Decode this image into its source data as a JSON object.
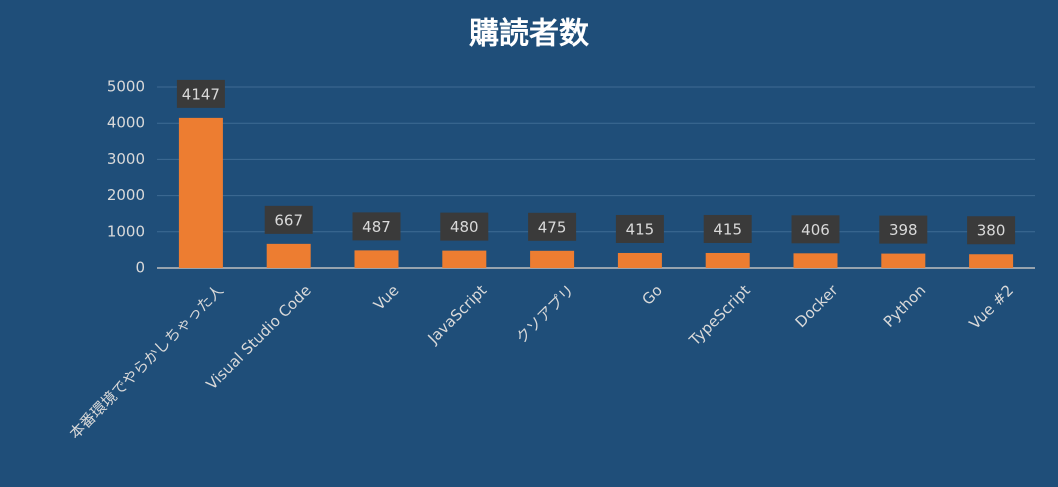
{
  "chart_data": {
    "type": "bar",
    "title": "購読者数",
    "categories": [
      "本番環境でやらかしちゃった人",
      "Visual Studio Code",
      "Vue",
      "JavaScript",
      "クソアプリ",
      "Go",
      "TypeScript",
      "Docker",
      "Python",
      "Vue #2"
    ],
    "values": [
      4147,
      667,
      487,
      480,
      475,
      415,
      415,
      406,
      398,
      380
    ],
    "color": "#ed7d31",
    "ylim": [
      0,
      5000
    ],
    "yticks": [
      0,
      1000,
      2000,
      3000,
      4000,
      5000
    ],
    "grid": true
  }
}
